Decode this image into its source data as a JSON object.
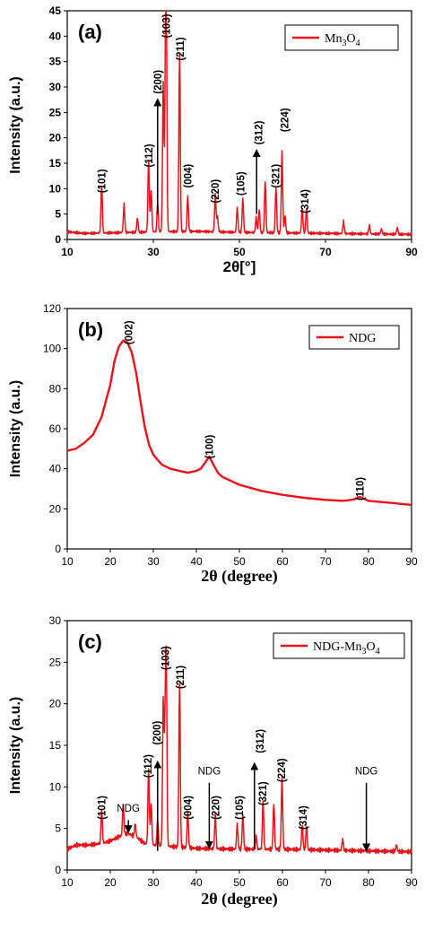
{
  "chart_data": [
    {
      "type": "line",
      "panel_label": "(a)",
      "xlabel": "2θ[°]",
      "ylabel": "Intensity (a.u.)",
      "xlim": [
        10,
        90
      ],
      "ylim": [
        0,
        45
      ],
      "xticks": [
        10,
        30,
        50,
        70,
        90
      ],
      "yticks": [
        0,
        5,
        10,
        15,
        20,
        25,
        30,
        35,
        40,
        45
      ],
      "legend": {
        "position": "top-right",
        "label_parts": [
          "Mn",
          "3",
          "O",
          "4"
        ]
      },
      "series": [
        {
          "name": "Mn3O4",
          "color": "#e8141c",
          "baseline": [
            [
              10,
              1.5
            ],
            [
              14,
              1.2
            ],
            [
              20,
              1.3
            ],
            [
              30,
              1.5
            ],
            [
              40,
              1.6
            ],
            [
              50,
              1.4
            ],
            [
              60,
              1.3
            ],
            [
              70,
              1.2
            ],
            [
              80,
              1.1
            ],
            [
              90,
              1.0
            ]
          ],
          "peaks": [
            [
              18.0,
              9.3
            ],
            [
              23.2,
              5.6
            ],
            [
              26.3,
              2.8
            ],
            [
              28.9,
              14.0
            ],
            [
              29.5,
              8.2
            ],
            [
              31.0,
              5.6
            ],
            [
              32.3,
              29.5
            ],
            [
              32.8,
              22.0
            ],
            [
              33.0,
              40.5
            ],
            [
              36.1,
              35.0
            ],
            [
              38.0,
              6.9
            ],
            [
              44.4,
              7.3
            ],
            [
              44.9,
              3.0
            ],
            [
              49.5,
              4.8
            ],
            [
              50.8,
              6.8
            ],
            [
              53.9,
              3.0
            ],
            [
              54.6,
              4.5
            ],
            [
              56.0,
              10.1
            ],
            [
              58.5,
              8.8
            ],
            [
              59.9,
              16.0
            ],
            [
              60.6,
              3.5
            ],
            [
              64.6,
              5.0
            ],
            [
              65.6,
              4.8
            ],
            [
              74.2,
              2.4
            ],
            [
              80.2,
              1.6
            ],
            [
              83.0,
              1.0
            ],
            [
              86.7,
              1.3
            ]
          ]
        }
      ],
      "peak_labels": [
        {
          "text": "(101)",
          "x": 18.0,
          "y": 11.5
        },
        {
          "text": "(112)",
          "x": 29.0,
          "y": 16.5
        },
        {
          "text": "(200)",
          "x": 31.0,
          "y": 31.0
        },
        {
          "text": "(103)",
          "x": 33.0,
          "y": 42.0
        },
        {
          "text": "(211)",
          "x": 36.2,
          "y": 37.5
        },
        {
          "text": "(004)",
          "x": 38.0,
          "y": 12.5
        },
        {
          "text": "(220)",
          "x": 44.4,
          "y": 9.5
        },
        {
          "text": "(105)",
          "x": 50.3,
          "y": 11.0
        },
        {
          "text": "(312)",
          "x": 54.5,
          "y": 21.0
        },
        {
          "text": "(321)",
          "x": 58.4,
          "y": 12.5
        },
        {
          "text": "(224)",
          "x": 60.5,
          "y": 23.5
        },
        {
          "text": "(314)",
          "x": 65.2,
          "y": 7.5
        }
      ],
      "arrows": [
        {
          "x": 31.0,
          "y_from": 5.0,
          "y_to": 27.5
        },
        {
          "x": 54.0,
          "y_from": 5.0,
          "y_to": 17.5
        }
      ]
    },
    {
      "type": "line",
      "panel_label": "(b)",
      "xlabel": "2θ (degree)",
      "ylabel": "Intensity (a.u.)",
      "xlim": [
        10,
        90
      ],
      "ylim": [
        0,
        120
      ],
      "xticks": [
        10,
        20,
        30,
        40,
        50,
        60,
        70,
        80,
        90
      ],
      "yticks": [
        0,
        20,
        40,
        60,
        80,
        100,
        120
      ],
      "legend": {
        "position": "top-right",
        "label_parts": [
          "NDG"
        ]
      },
      "series": [
        {
          "name": "NDG",
          "color": "#e8141c",
          "x": [
            10,
            12,
            14,
            16,
            18,
            20,
            21,
            22,
            23,
            24,
            25,
            26,
            27,
            28,
            29,
            30,
            32,
            34,
            36,
            38,
            40,
            41,
            42,
            43,
            44,
            45,
            46,
            48,
            50,
            55,
            60,
            65,
            70,
            74,
            76,
            77,
            78,
            79,
            80,
            85,
            90
          ],
          "y": [
            49,
            50,
            53,
            57,
            66,
            82,
            94,
            101,
            104,
            103,
            98,
            88,
            74,
            61,
            52,
            47,
            42,
            40,
            39,
            38,
            39,
            40,
            43,
            46,
            42,
            38,
            36,
            34,
            32,
            29,
            27,
            25.5,
            24.5,
            24,
            24.5,
            25,
            26,
            25,
            24,
            23,
            22
          ]
        }
      ],
      "peak_labels": [
        {
          "text": "(002)",
          "x": 24.3,
          "y": 108
        },
        {
          "text": "(100)",
          "x": 43.0,
          "y": 51
        },
        {
          "text": "(110)",
          "x": 78.0,
          "y": 30
        }
      ]
    },
    {
      "type": "line",
      "panel_label": "(c)",
      "xlabel": "2θ (degree)",
      "ylabel": "Intensity (a.u.)",
      "xlim": [
        10,
        90
      ],
      "ylim": [
        0,
        30
      ],
      "xticks": [
        10,
        20,
        30,
        40,
        50,
        60,
        70,
        80,
        90
      ],
      "yticks": [
        0,
        5,
        10,
        15,
        20,
        25,
        30
      ],
      "legend": {
        "position": "top-right",
        "label_parts": [
          "NDG-Mn",
          "3",
          "O",
          "4"
        ]
      },
      "series": [
        {
          "name": "NDG-Mn3O4",
          "color": "#e8141c",
          "baseline": [
            [
              10,
              2.5
            ],
            [
              12,
              3.0
            ],
            [
              15,
              3.0
            ],
            [
              18,
              3.2
            ],
            [
              20,
              3.5
            ],
            [
              22,
              4.0
            ],
            [
              24,
              4.4
            ],
            [
              26,
              4.0
            ],
            [
              28,
              3.2
            ],
            [
              30,
              3.0
            ],
            [
              35,
              2.8
            ],
            [
              40,
              2.6
            ],
            [
              50,
              2.5
            ],
            [
              60,
              2.5
            ],
            [
              70,
              2.4
            ],
            [
              80,
              2.3
            ],
            [
              90,
              2.2
            ]
          ],
          "peaks": [
            [
              18.0,
              4.0
            ],
            [
              23.0,
              3.6
            ],
            [
              25.8,
              1.5
            ],
            [
              28.9,
              9.0
            ],
            [
              29.5,
              5.0
            ],
            [
              31.0,
              3.0
            ],
            [
              32.3,
              17.5
            ],
            [
              32.7,
              12.0
            ],
            [
              33.0,
              22.0
            ],
            [
              36.1,
              19.9
            ],
            [
              38.0,
              4.2
            ],
            [
              44.4,
              4.0
            ],
            [
              49.5,
              3.0
            ],
            [
              50.8,
              4.3
            ],
            [
              53.9,
              1.5
            ],
            [
              55.5,
              5.8
            ],
            [
              58.0,
              5.5
            ],
            [
              59.9,
              8.7
            ],
            [
              64.6,
              3.1
            ],
            [
              65.6,
              2.8
            ],
            [
              74.0,
              1.3
            ],
            [
              86.5,
              0.8
            ]
          ]
        }
      ],
      "peak_labels": [
        {
          "text": "(101)",
          "x": 18.0,
          "y": 7.5
        },
        {
          "text": "(112)",
          "x": 28.8,
          "y": 12.5
        },
        {
          "text": "(200)",
          "x": 30.8,
          "y": 16.5
        },
        {
          "text": "(103)",
          "x": 32.8,
          "y": 25.5
        },
        {
          "text": "(211)",
          "x": 36.2,
          "y": 23.2
        },
        {
          "text": "(004)",
          "x": 38.0,
          "y": 7.5
        },
        {
          "text": "(220)",
          "x": 44.5,
          "y": 7.5
        },
        {
          "text": "(105)",
          "x": 50.0,
          "y": 7.5
        },
        {
          "text": "(312)",
          "x": 54.8,
          "y": 15.5
        },
        {
          "text": "(321)",
          "x": 55.4,
          "y": 9.2
        },
        {
          "text": "(224)",
          "x": 59.8,
          "y": 12.0
        },
        {
          "text": "(314)",
          "x": 64.8,
          "y": 6.3
        }
      ],
      "annotations": [
        {
          "text": "NDG",
          "x": 24.2,
          "y": 7.0
        },
        {
          "text": "NDG",
          "x": 43.0,
          "y": 11.5
        },
        {
          "text": "NDG",
          "x": 79.5,
          "y": 11.5
        }
      ],
      "arrows": [
        {
          "x": 31.0,
          "y_from": 2.3,
          "y_to": 13.0
        },
        {
          "x": 53.5,
          "y_from": 2.5,
          "y_to": 12.8
        },
        {
          "x": 24.2,
          "y_from": 6.0,
          "y_to": 4.6
        },
        {
          "x": 43.0,
          "y_from": 10.5,
          "y_to": 2.7
        },
        {
          "x": 79.5,
          "y_from": 10.5,
          "y_to": 2.4
        }
      ]
    }
  ]
}
